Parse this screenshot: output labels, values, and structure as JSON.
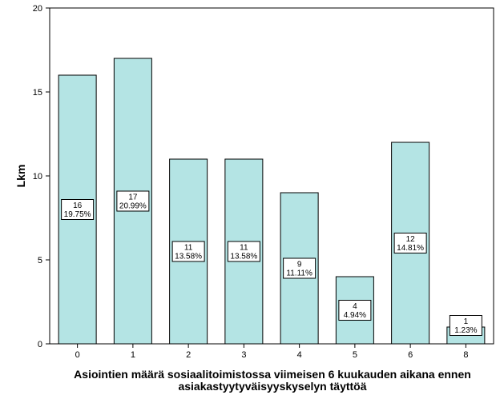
{
  "chart_data": {
    "type": "bar",
    "categories": [
      "0",
      "1",
      "2",
      "3",
      "4",
      "5",
      "6",
      "8"
    ],
    "values": [
      16,
      17,
      11,
      11,
      9,
      4,
      12,
      1
    ],
    "percent_labels": [
      "19.75%",
      "20.99%",
      "13.58%",
      "13.58%",
      "11.11%",
      "4.94%",
      "14.81%",
      "1.23%"
    ],
    "ylabel": "Lkm",
    "xlabel_lines": [
      "Asiointien määrä sosiaalitoimistossa viimeisen 6 kuukauden aikana ennen",
      "asiakastyytyväisyyskyselyn täyttöä"
    ],
    "ylim": [
      0,
      20
    ],
    "yticks": [
      0,
      5,
      10,
      15,
      20
    ],
    "bar_color": "#b4e4e4",
    "grid": false,
    "legend": "none"
  }
}
